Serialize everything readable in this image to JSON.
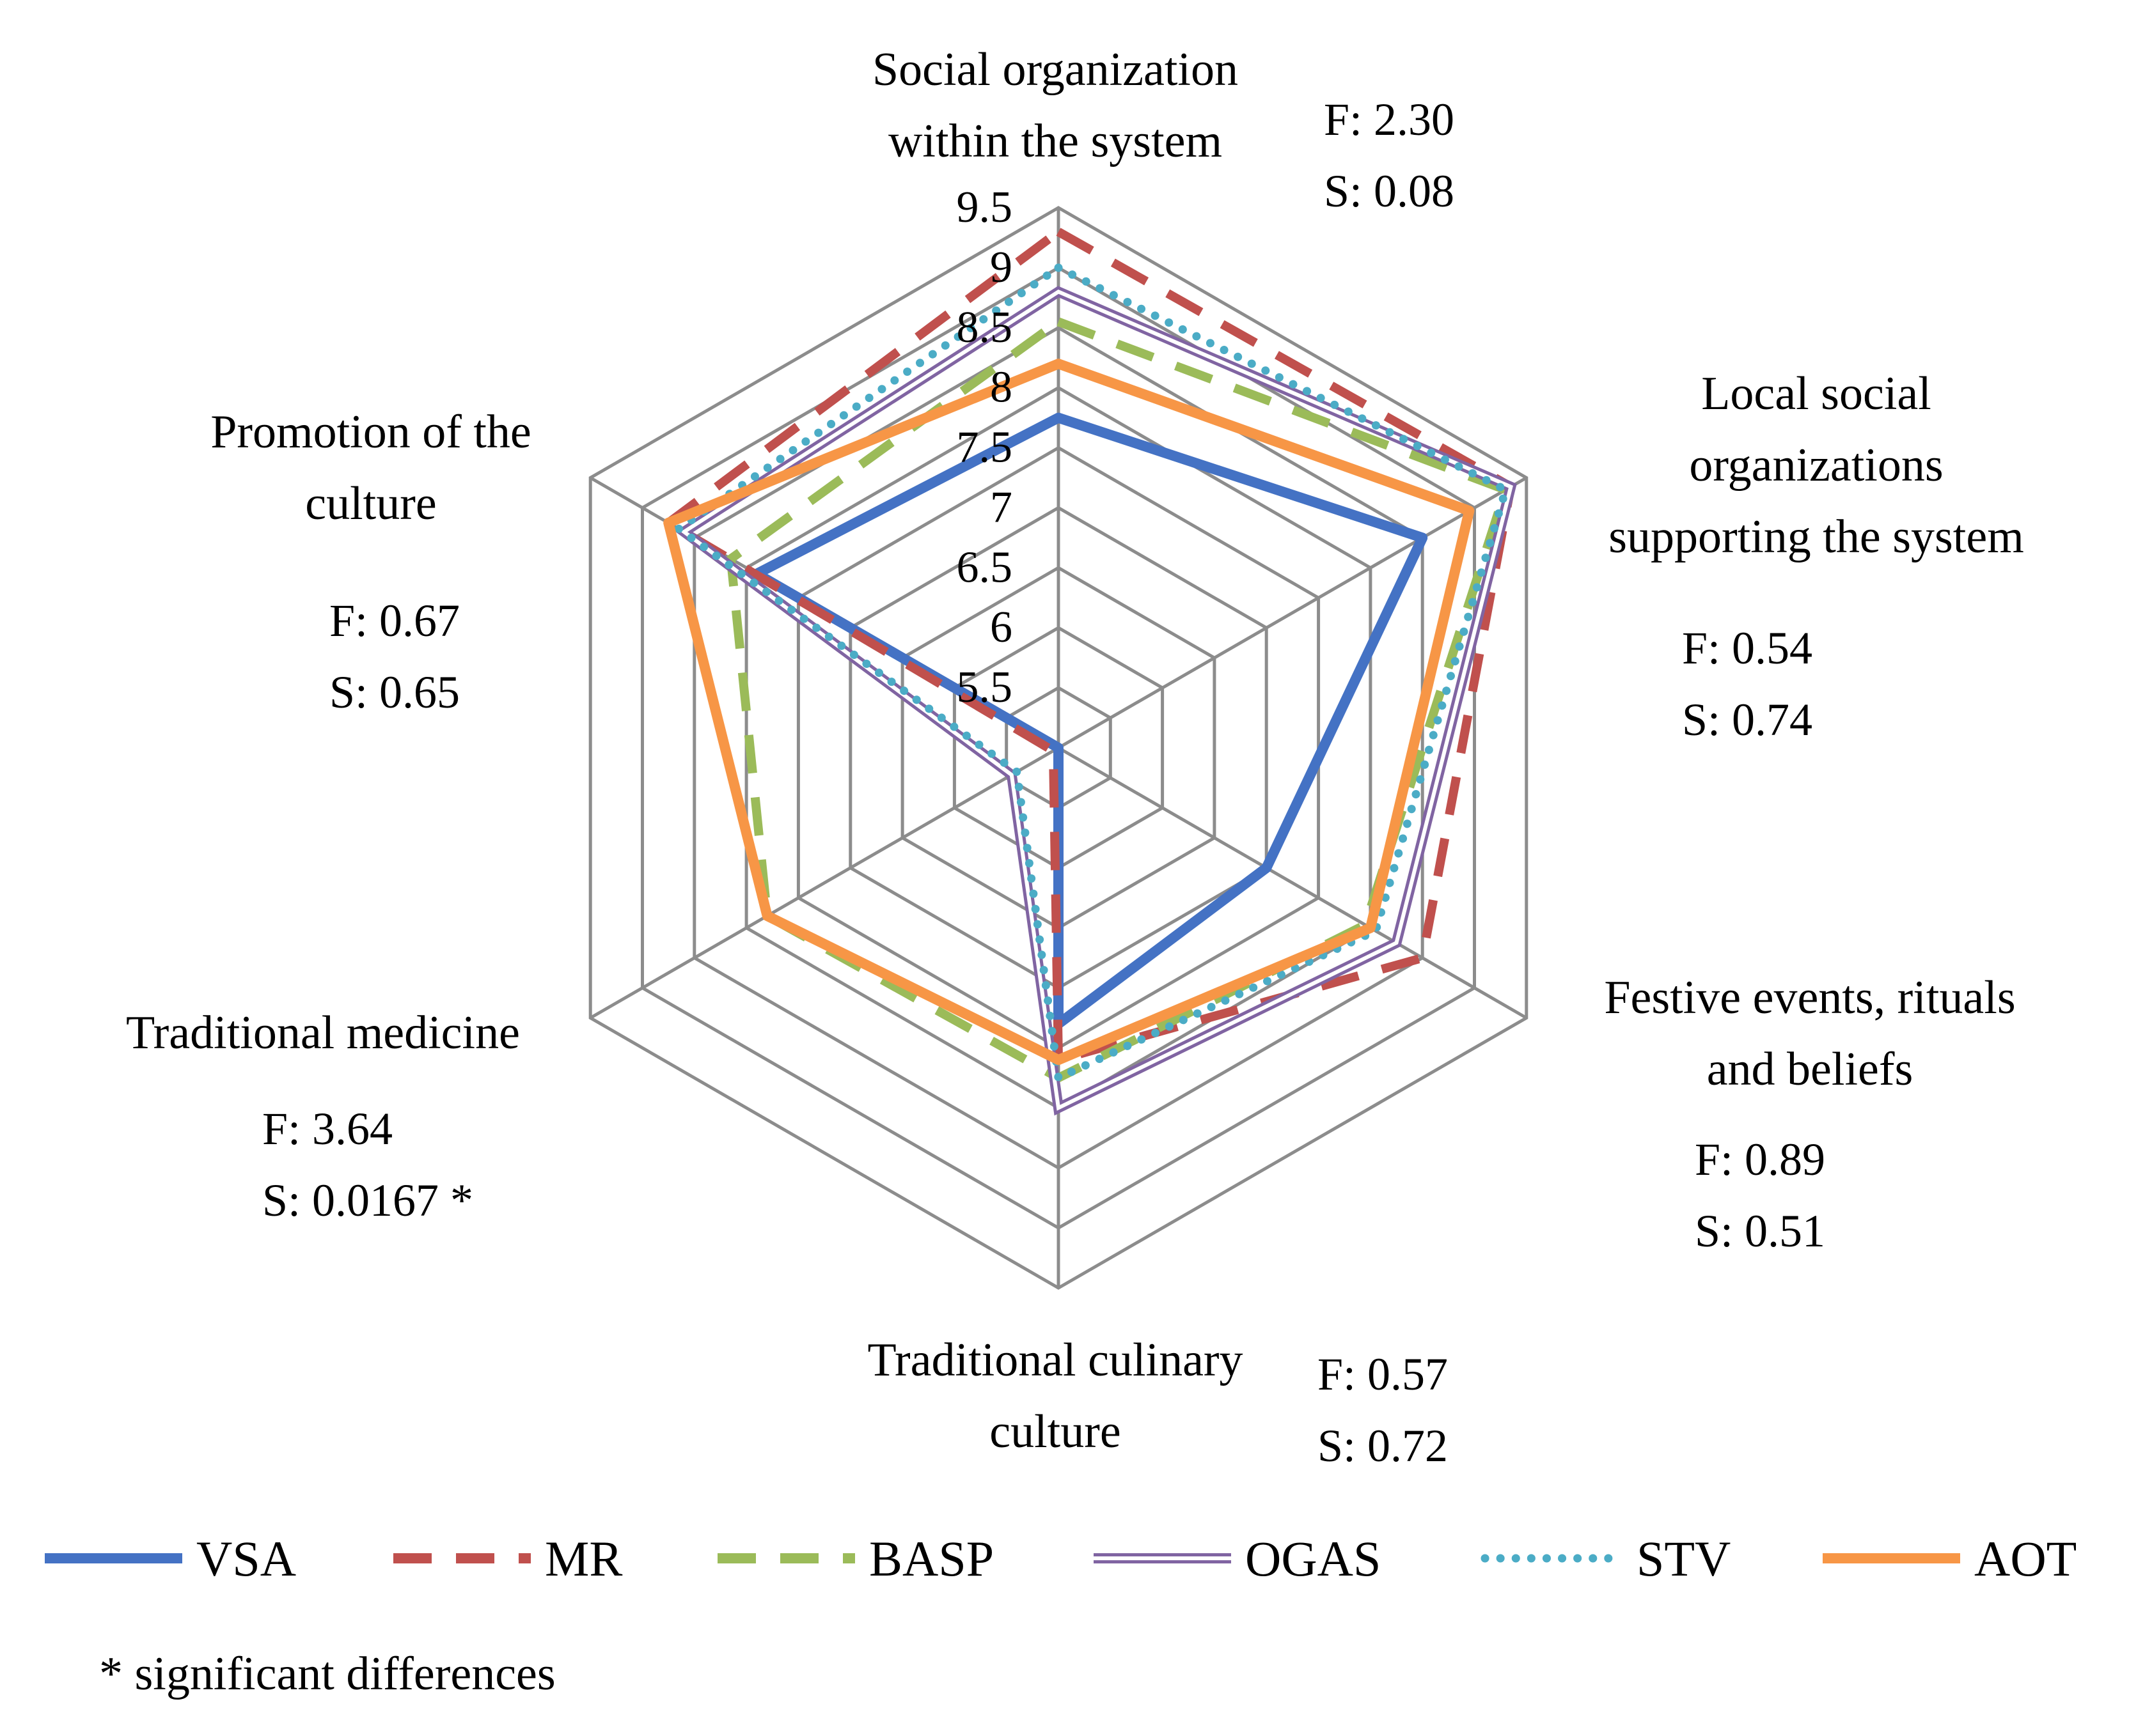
{
  "chart_data": {
    "type": "radar",
    "title": "",
    "categories": [
      "Social organization within the system",
      "Local social organizations supporting the system",
      "Festive events, rituals and beliefs",
      "Traditional culinary culture",
      "Traditional medicine",
      "Promotion of the culture"
    ],
    "category_title_lines": [
      [
        "Social organization",
        "within the system"
      ],
      [
        "Local social",
        "organizations",
        "supporting the system"
      ],
      [
        "Festive events, rituals",
        "and beliefs"
      ],
      [
        "Traditional culinary",
        "culture"
      ],
      [
        "Traditional medicine"
      ],
      [
        "Promotion of the",
        "culture"
      ]
    ],
    "stats": [
      {
        "F": "F: 2.30",
        "S": "S: 0.08"
      },
      {
        "F": "F: 0.54",
        "S": "S: 0.74"
      },
      {
        "F": "F: 0.89",
        "S": "S: 0.51"
      },
      {
        "F": "F: 0.57",
        "S": "S: 0.72"
      },
      {
        "F": "F: 3.64",
        "S": "S: 0.0167 *"
      },
      {
        "F": "F: 0.67",
        "S": "S: 0.65"
      }
    ],
    "rlim": [
      5,
      9.5
    ],
    "ticks": [
      5.5,
      6,
      6.5,
      7,
      7.5,
      8,
      8.5,
      9,
      9.5
    ],
    "tick_labels": [
      "5.5",
      "6",
      "6.5",
      "7",
      "7.5",
      "8",
      "8.5",
      "9",
      "9.5"
    ],
    "series": [
      {
        "name": "VSA",
        "values": [
          7.75,
          8.5,
          7.0,
          7.3,
          5.0,
          7.9
        ],
        "color": "#4472c4",
        "style": "solid"
      },
      {
        "name": "MR",
        "values": [
          9.3,
          9.35,
          8.5,
          7.6,
          5.05,
          8.75
        ],
        "color": "#c0504d",
        "style": "dashed"
      },
      {
        "name": "BASP",
        "values": [
          8.55,
          9.3,
          7.95,
          7.75,
          7.8,
          8.15
        ],
        "color": "#9bbb59",
        "style": "dashed"
      },
      {
        "name": "OGAS",
        "values": [
          8.8,
          9.35,
          8.25,
          8.0,
          5.45,
          8.6
        ],
        "color": "#8064a2",
        "style": "double"
      },
      {
        "name": "STV",
        "values": [
          9.0,
          9.3,
          8.05,
          7.75,
          5.4,
          8.65
        ],
        "color": "#4bacc6",
        "style": "dotted"
      },
      {
        "name": "AOT",
        "values": [
          8.2,
          8.95,
          8.0,
          7.6,
          7.8,
          8.75
        ],
        "color": "#f79646",
        "style": "solid"
      }
    ],
    "grid": true,
    "legend_position": "bottom"
  },
  "footnote": "* significant differences"
}
